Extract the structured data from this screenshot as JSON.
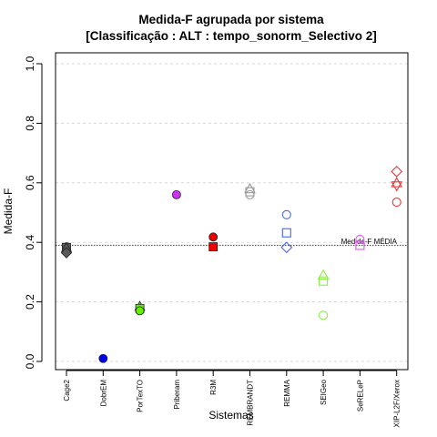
{
  "chart_data": {
    "type": "scatter",
    "title": "Medida-F agrupada por sistema",
    "subtitle": "[Classificação : ALT : tempo_sonorm_Selectivo 2]",
    "xlabel": "Sistemas",
    "ylabel": "Medida-F",
    "ylim": [
      0,
      1
    ],
    "yticks": [
      "0.0",
      "0.2",
      "0.4",
      "0.6",
      "0.8",
      "1.0"
    ],
    "grid": true,
    "categories": [
      "Cage2",
      "DobrEM",
      "PorTexTO",
      "Priberam",
      "R3M",
      "REMBRANDT",
      "REMMA",
      "SEIGeo",
      "SeRELeP",
      "XIP-L2F/Xerox"
    ],
    "reference_line": {
      "value": 0.39,
      "label": "Medida-F MÉDIA"
    },
    "points": [
      {
        "category": "Cage2",
        "y": 0.385,
        "shape": "circle",
        "filled": true,
        "color": "#595959"
      },
      {
        "category": "Cage2",
        "y": 0.383,
        "shape": "square",
        "filled": true,
        "color": "#595959"
      },
      {
        "category": "Cage2",
        "y": 0.382,
        "shape": "triangle",
        "filled": true,
        "color": "#595959"
      },
      {
        "category": "Cage2",
        "y": 0.365,
        "shape": "diamond",
        "filled": true,
        "color": "#595959"
      },
      {
        "category": "DobrEM",
        "y": 0.01,
        "shape": "circle",
        "filled": true,
        "color": "#0000ee"
      },
      {
        "category": "PorTexTO",
        "y": 0.185,
        "shape": "triangle",
        "filled": true,
        "color": "#66ee00"
      },
      {
        "category": "PorTexTO",
        "y": 0.178,
        "shape": "square",
        "filled": true,
        "color": "#66ee00"
      },
      {
        "category": "PorTexTO",
        "y": 0.17,
        "shape": "circle",
        "filled": true,
        "color": "#66ee00"
      },
      {
        "category": "Priberam",
        "y": 0.56,
        "shape": "circle",
        "filled": true,
        "color": "#cc33ee"
      },
      {
        "category": "R3M",
        "y": 0.418,
        "shape": "circle",
        "filled": true,
        "color": "#ee0000"
      },
      {
        "category": "R3M",
        "y": 0.385,
        "shape": "square",
        "filled": true,
        "color": "#ee0000"
      },
      {
        "category": "REMBRANDT",
        "y": 0.58,
        "shape": "triangle",
        "filled": false,
        "color": "#999999"
      },
      {
        "category": "REMBRANDT",
        "y": 0.57,
        "shape": "square",
        "filled": false,
        "color": "#999999"
      },
      {
        "category": "REMBRANDT",
        "y": 0.56,
        "shape": "circle",
        "filled": false,
        "color": "#999999"
      },
      {
        "category": "REMMA",
        "y": 0.493,
        "shape": "circle",
        "filled": false,
        "color": "#4466ee"
      },
      {
        "category": "REMMA",
        "y": 0.432,
        "shape": "square",
        "filled": false,
        "color": "#4466ee"
      },
      {
        "category": "REMMA",
        "y": 0.383,
        "shape": "diamond",
        "filled": false,
        "color": "#4466ee"
      },
      {
        "category": "SEIGeo",
        "y": 0.29,
        "shape": "triangle",
        "filled": false,
        "color": "#88ee44"
      },
      {
        "category": "SEIGeo",
        "y": 0.27,
        "shape": "square",
        "filled": false,
        "color": "#88ee44"
      },
      {
        "category": "SEIGeo",
        "y": 0.155,
        "shape": "circle",
        "filled": false,
        "color": "#88ee44"
      },
      {
        "category": "SeRELeP",
        "y": 0.41,
        "shape": "circle",
        "filled": false,
        "color": "#dd55ee"
      },
      {
        "category": "SeRELeP",
        "y": 0.39,
        "shape": "square",
        "filled": false,
        "color": "#dd55ee"
      },
      {
        "category": "XIP-L2F/Xerox",
        "y": 0.638,
        "shape": "diamond",
        "filled": false,
        "color": "#ee3333"
      },
      {
        "category": "XIP-L2F/Xerox",
        "y": 0.6,
        "shape": "triangle",
        "filled": false,
        "color": "#ee3333"
      },
      {
        "category": "XIP-L2F/Xerox",
        "y": 0.59,
        "shape": "triangle-down",
        "filled": false,
        "color": "#ee3333"
      },
      {
        "category": "XIP-L2F/Xerox",
        "y": 0.535,
        "shape": "circle",
        "filled": false,
        "color": "#ee3333"
      }
    ]
  }
}
